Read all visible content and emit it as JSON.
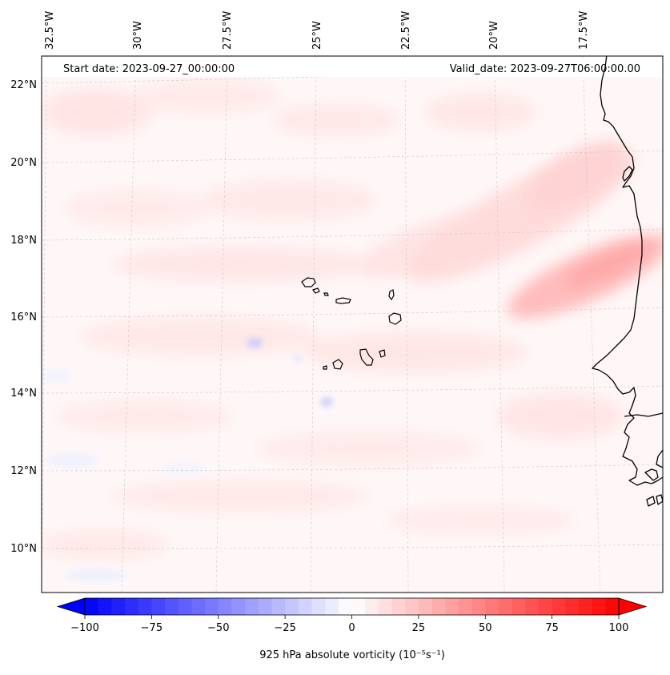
{
  "map": {
    "start_date": "Start date: 2023-09-27_00:00:00",
    "valid_date": "Valid_date: 2023-09-27T06:00:00.00",
    "lon_labels": [
      "32.5°W",
      "30°W",
      "27.5°W",
      "25°W",
      "22.5°W",
      "20°W",
      "17.5°W"
    ],
    "lat_labels": [
      "22°N",
      "20°N",
      "18°N",
      "16°N",
      "14°N",
      "12°N",
      "10°N"
    ],
    "features": [
      "cape-verde-islands",
      "west-african-coastline",
      "vorticity-field"
    ]
  },
  "colorbar": {
    "label": "925 hPa absolute vorticity (10⁻⁵s⁻¹)",
    "ticks": [
      "−100",
      "−75",
      "−50",
      "−25",
      "0",
      "25",
      "50",
      "75",
      "100"
    ],
    "min": -100,
    "max": 100,
    "step": 5,
    "cmap": "bwr",
    "extend": "both",
    "colors": {
      "negative_end": "#0000ff",
      "zero": "#ffffff",
      "positive_end": "#ff0000"
    }
  }
}
